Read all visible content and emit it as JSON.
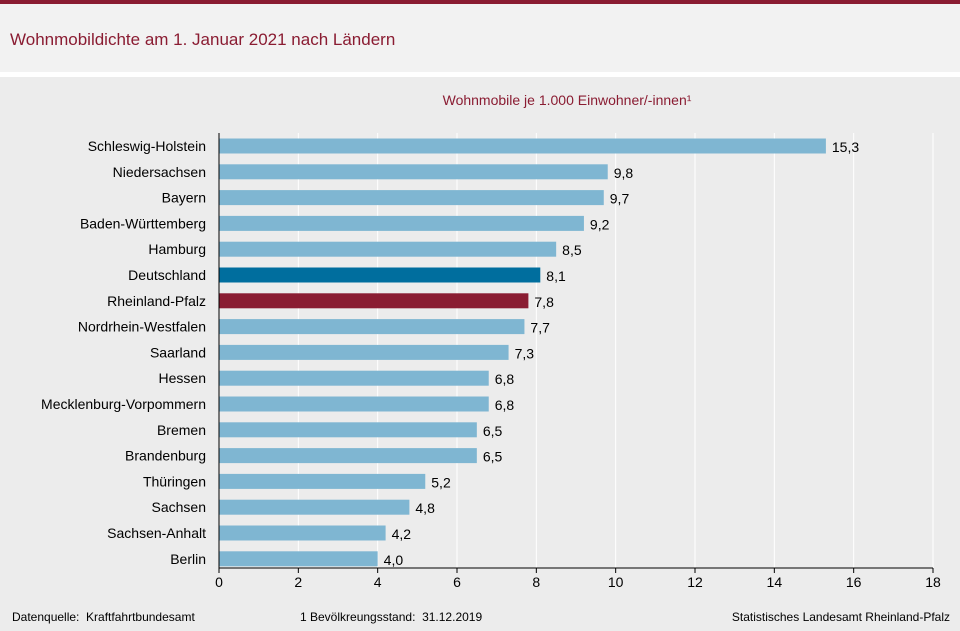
{
  "title": "Wohnmobildichte am 1. Januar 2021 nach Ländern",
  "chart_data": {
    "type": "bar",
    "orientation": "horizontal",
    "title": "Wohnmobildichte am 1. Januar 2021 nach Ländern",
    "subtitle": "Wohnmobile je 1.000 Einwohner/-innen¹",
    "xlabel": "",
    "ylabel": "",
    "xlim": [
      0,
      18
    ],
    "xticks": [
      0,
      2,
      4,
      6,
      8,
      10,
      12,
      14,
      16,
      18
    ],
    "grid": "vertical",
    "categories": [
      "Schleswig-Holstein",
      "Niedersachsen",
      "Bayern",
      "Baden-Württemberg",
      "Hamburg",
      "Deutschland",
      "Rheinland-Pfalz",
      "Nordrhein-Westfalen",
      "Saarland",
      "Hessen",
      "Mecklenburg-Vorpommern",
      "Bremen",
      "Brandenburg",
      "Thüringen",
      "Sachsen",
      "Sachsen-Anhalt",
      "Berlin"
    ],
    "values": [
      15.3,
      9.8,
      9.7,
      9.2,
      8.5,
      8.1,
      7.8,
      7.7,
      7.3,
      6.8,
      6.8,
      6.5,
      6.5,
      5.2,
      4.8,
      4.2,
      4.0
    ],
    "value_labels": [
      "15,3",
      "9,8",
      "9,7",
      "9,2",
      "8,5",
      "8,1",
      "7,8",
      "7,7",
      "7,3",
      "6,8",
      "6,8",
      "6,5",
      "6,5",
      "5,2",
      "4,8",
      "4,2",
      "4,0"
    ],
    "colors": {
      "default": "#7fb6d2",
      "Deutschland": "#006e9e",
      "Rheinland-Pfalz": "#8a1c32"
    }
  },
  "footer": {
    "source": "Datenquelle:  Kraftfahrtbundesamt",
    "note": "1 Bevölkreungsstand:  31.12.2019",
    "publisher": "Statistisches Landesamt Rheinland-Pfalz"
  },
  "colors": {
    "accent": "#8a1c32",
    "band": "#f2f2f2",
    "background": "#ececec"
  }
}
